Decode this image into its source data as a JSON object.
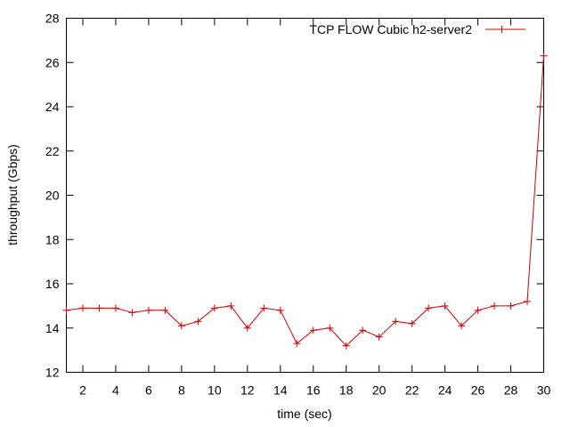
{
  "chart_data": {
    "type": "line",
    "title": "",
    "xlabel": "time (sec)",
    "ylabel": "throughput (Gbps)",
    "xlim": [
      1,
      30
    ],
    "ylim": [
      12,
      28
    ],
    "x_ticks": [
      2,
      4,
      6,
      8,
      10,
      12,
      14,
      16,
      18,
      20,
      22,
      24,
      26,
      28,
      30
    ],
    "y_ticks": [
      12,
      14,
      16,
      18,
      20,
      22,
      24,
      26,
      28
    ],
    "x_tick_labels": [
      "2",
      "4",
      "6",
      "8",
      "10",
      "12",
      "14",
      "16",
      "18",
      "20",
      "22",
      "24",
      "26",
      "28",
      "30"
    ],
    "y_tick_labels": [
      "12",
      "14",
      "16",
      "18",
      "20",
      "22",
      "24",
      "26",
      "28"
    ],
    "grid": false,
    "legend_position": "top-right",
    "series": [
      {
        "name": "TCP FLOW Cubic h2-server2",
        "color": "#cc0000",
        "marker": "plus",
        "x": [
          1,
          2,
          3,
          4,
          5,
          6,
          7,
          8,
          9,
          10,
          11,
          12,
          13,
          14,
          15,
          16,
          17,
          18,
          19,
          20,
          21,
          22,
          23,
          24,
          25,
          26,
          27,
          28,
          29,
          30
        ],
        "y": [
          14.8,
          14.9,
          14.9,
          14.9,
          14.7,
          14.8,
          14.8,
          14.1,
          14.3,
          14.9,
          15.0,
          14.0,
          14.9,
          14.8,
          13.3,
          13.9,
          14.0,
          13.2,
          13.9,
          13.6,
          14.3,
          14.2,
          14.9,
          15.0,
          14.1,
          14.8,
          15.0,
          15.0,
          15.2,
          26.3
        ]
      }
    ]
  }
}
